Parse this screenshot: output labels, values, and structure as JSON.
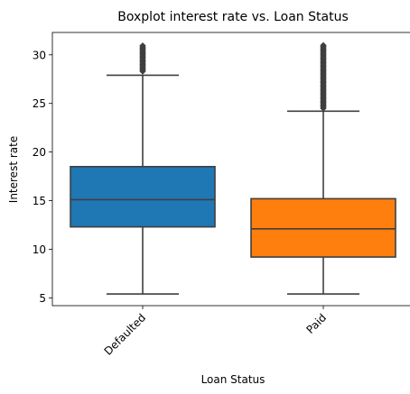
{
  "chart_data": {
    "type": "box",
    "title": "Boxplot interest rate vs. Loan Status",
    "xlabel": "Loan Status",
    "ylabel": "Interest rate",
    "ylim": [
      4.2,
      32.3
    ],
    "yticks": [
      5,
      10,
      15,
      20,
      25,
      30
    ],
    "grid": false,
    "categories": [
      "Defaulted",
      "Paid"
    ],
    "boxes": [
      {
        "category": "Defaulted",
        "color": "#1f77b4",
        "whisker_low": 5.4,
        "q1": 12.3,
        "median": 15.1,
        "q3": 18.5,
        "whisker_high": 27.9,
        "outliers_range": [
          28.3,
          31.0
        ]
      },
      {
        "category": "Paid",
        "color": "#ff7f0e",
        "whisker_low": 5.4,
        "q1": 9.2,
        "median": 12.1,
        "q3": 15.2,
        "whisker_high": 24.2,
        "outliers_range": [
          24.5,
          31.0
        ]
      }
    ]
  }
}
